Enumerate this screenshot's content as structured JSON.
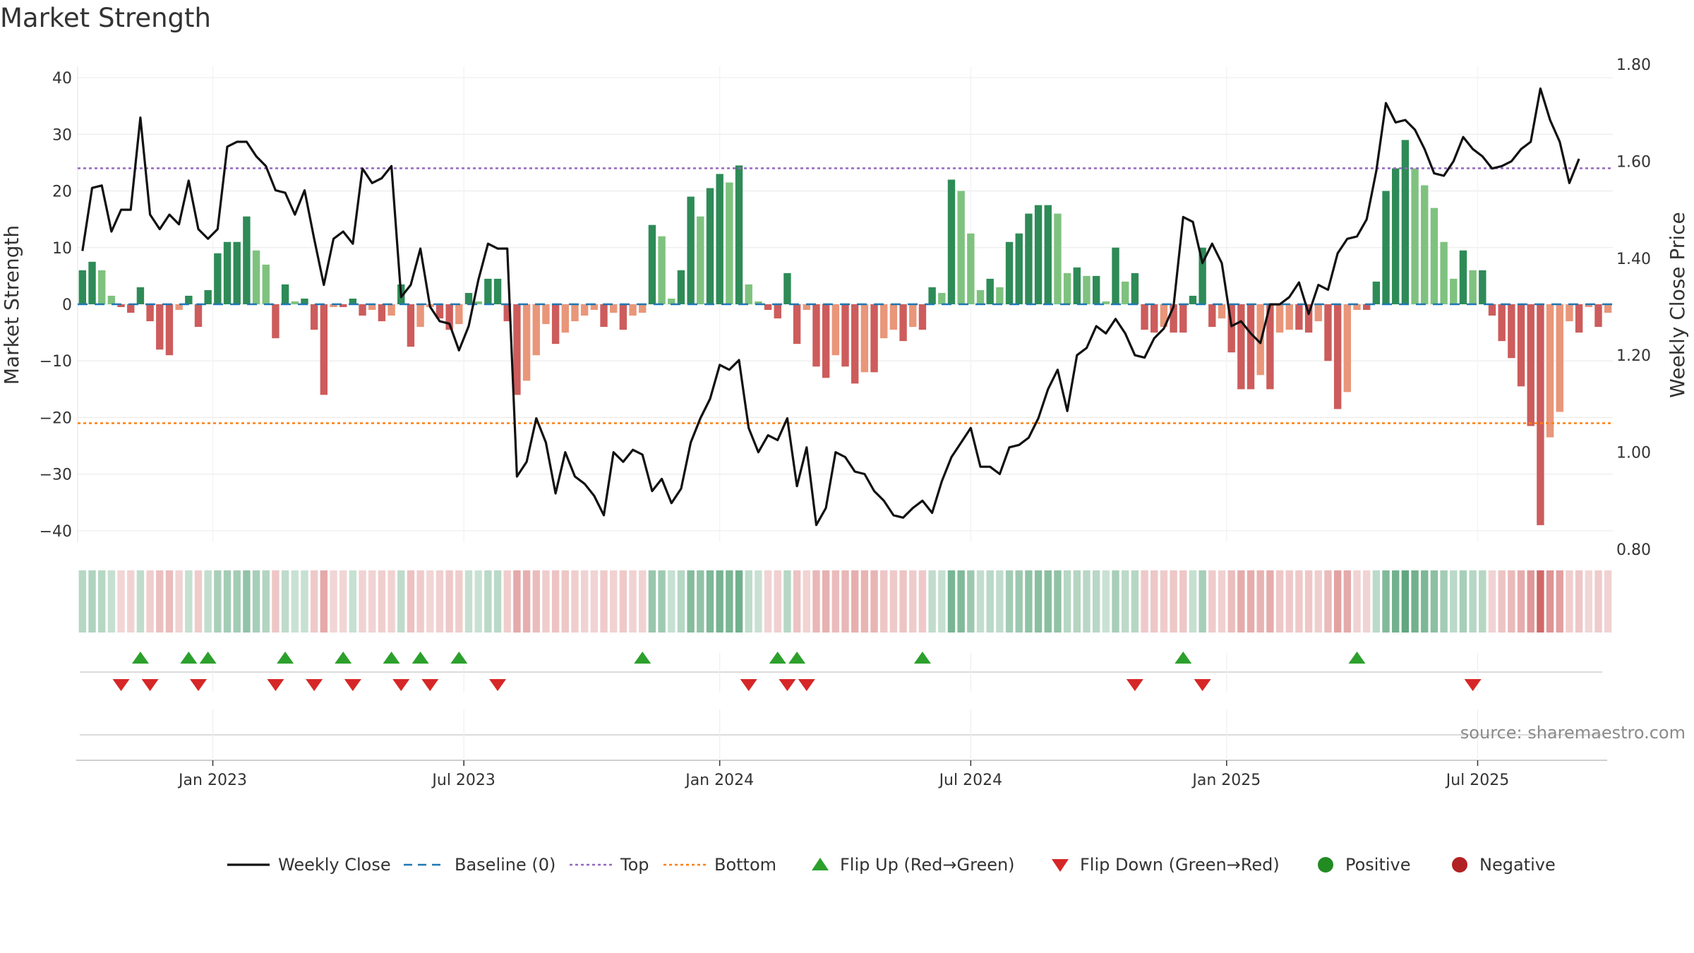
{
  "title": "Market Strength",
  "source": "source: sharemaestro.com",
  "colors": {
    "pos_strong": "#2e8b57",
    "pos_light": "#7fc27f",
    "neg_strong": "#cd5c5c",
    "neg_light": "#e9967a",
    "close": "#111111",
    "baseline": "#1f77b4",
    "top": "#9467bd",
    "bottom": "#ff7f0e",
    "flip_up": "#2ca02c",
    "flip_down": "#d62728",
    "positive_dot": "#228b22",
    "negative_dot": "#b22222"
  },
  "chart_data": {
    "type": "bar",
    "y_label": "Market Strength",
    "y2_label": "Weekly Close Price",
    "y_ticks": [
      "40",
      "30",
      "20",
      "10",
      "0",
      "−10",
      "−20",
      "−30",
      "−40"
    ],
    "y_tick_values": [
      40,
      30,
      20,
      10,
      0,
      -10,
      -20,
      -30,
      -40
    ],
    "ylim": [
      -42,
      42
    ],
    "y2_ticks": [
      "1.80",
      "1.60",
      "1.40",
      "1.20",
      "1.00",
      "0.80"
    ],
    "y2_tick_values": [
      1.8,
      1.6,
      1.4,
      1.2,
      1.0,
      0.8
    ],
    "y2lim": [
      0.8,
      1.8
    ],
    "date_ticks": [
      "Jan 2023",
      "Jul 2023",
      "Jan 2024",
      "Jul 2024",
      "Jan 2025",
      "Jul 2025"
    ],
    "date_tick_weeks": [
      14,
      40,
      66.5,
      92.5,
      119,
      145
    ],
    "top_level": 24,
    "bottom_level": -21,
    "strength": [
      6,
      7.5,
      6,
      1.5,
      -0.5,
      -1.5,
      3,
      -3,
      -8,
      -9,
      -1,
      1.5,
      -4,
      2.5,
      9,
      11,
      11,
      15.5,
      9.5,
      7,
      -6,
      3.5,
      0.5,
      1,
      -4.5,
      -16,
      -0.5,
      -0.5,
      1,
      -2,
      -1,
      -3,
      -2,
      3.5,
      -7.5,
      -4,
      -0.5,
      -2.5,
      -4.5,
      -3.5,
      2,
      0.5,
      4.5,
      4.5,
      -3,
      -16,
      -13.5,
      -9,
      -3.5,
      -7,
      -5,
      -3,
      -2,
      -1,
      -4,
      -1.5,
      -4.5,
      -2,
      -1.5,
      14,
      12,
      1,
      6,
      19,
      15.5,
      20.5,
      23,
      21.5,
      24.5,
      3.5,
      0.5,
      -1,
      -2.5,
      5.5,
      -7,
      -1,
      -11,
      -13,
      -9,
      -11,
      -14,
      -12,
      -12,
      -6,
      -4.5,
      -6.5,
      -4,
      -4.5,
      3,
      2,
      22,
      20,
      12.5,
      2.5,
      4.5,
      3,
      11,
      12.5,
      16,
      17.5,
      17.5,
      16,
      5.5,
      6.5,
      5,
      5,
      0.5,
      10,
      4,
      5.5,
      -4.5,
      -5,
      -4,
      -5,
      -5,
      1.5,
      10,
      -4,
      -2.5,
      -8.5,
      -15,
      -15,
      -12.5,
      -15,
      -5,
      -4.5,
      -4.5,
      -5,
      -3,
      -10,
      -18.5,
      -15.5,
      -1,
      -1,
      4,
      20,
      24,
      29,
      24,
      21,
      17,
      11,
      4.5,
      9.5,
      6,
      6,
      -2,
      -6.5,
      -9.5,
      -14.5,
      -21.5,
      -39,
      -23.5,
      -19,
      -3,
      -5,
      -0.5,
      -4,
      -1.5
    ],
    "close": [
      1.415,
      1.545,
      1.55,
      1.455,
      1.5,
      1.5,
      1.69,
      1.49,
      1.46,
      1.49,
      1.47,
      1.56,
      1.46,
      1.44,
      1.46,
      1.63,
      1.64,
      1.64,
      1.61,
      1.59,
      1.54,
      1.535,
      1.49,
      1.54,
      1.44,
      1.345,
      1.44,
      1.455,
      1.43,
      1.585,
      1.555,
      1.565,
      1.59,
      1.32,
      1.345,
      1.42,
      1.3,
      1.27,
      1.265,
      1.21,
      1.26,
      1.355,
      1.43,
      1.42,
      1.42,
      0.95,
      0.98,
      1.07,
      1.02,
      0.915,
      1.0,
      0.95,
      0.935,
      0.91,
      0.87,
      1.0,
      0.98,
      1.005,
      0.995,
      0.92,
      0.945,
      0.895,
      0.925,
      1.02,
      1.07,
      1.11,
      1.18,
      1.17,
      1.19,
      1.05,
      1.0,
      1.035,
      1.025,
      1.07,
      0.93,
      1.01,
      0.85,
      0.885,
      1.0,
      0.99,
      0.96,
      0.955,
      0.92,
      0.9,
      0.87,
      0.865,
      0.885,
      0.9,
      0.875,
      0.94,
      0.99,
      1.02,
      1.05,
      0.97,
      0.97,
      0.955,
      1.01,
      1.015,
      1.03,
      1.07,
      1.13,
      1.17,
      1.085,
      1.2,
      1.215,
      1.26,
      1.245,
      1.275,
      1.245,
      1.2,
      1.195,
      1.235,
      1.255,
      1.3,
      1.485,
      1.475,
      1.39,
      1.43,
      1.39,
      1.26,
      1.27,
      1.245,
      1.225,
      1.305,
      1.305,
      1.32,
      1.35,
      1.285,
      1.345,
      1.335,
      1.41,
      1.44,
      1.445,
      1.48,
      1.58,
      1.72,
      1.68,
      1.685,
      1.665,
      1.625,
      1.575,
      1.57,
      1.6,
      1.65,
      1.625,
      1.61,
      1.585,
      1.59,
      1.6,
      1.625,
      1.64,
      1.75,
      1.685,
      1.64,
      1.555,
      1.605
    ],
    "flip_up_weeks": [
      6,
      11,
      13,
      21,
      27,
      32,
      35,
      39,
      58,
      72,
      74,
      87,
      114,
      132
    ],
    "flip_down_weeks": [
      4,
      7,
      12,
      20,
      24,
      28,
      33,
      36,
      43,
      69,
      73,
      75,
      109,
      116,
      144
    ],
    "legend": [
      "Weekly Close",
      "Baseline (0)",
      "Top",
      "Bottom",
      "Flip Up (Red→Green)",
      "Flip Down (Green→Red)",
      "Positive",
      "Negative"
    ]
  }
}
